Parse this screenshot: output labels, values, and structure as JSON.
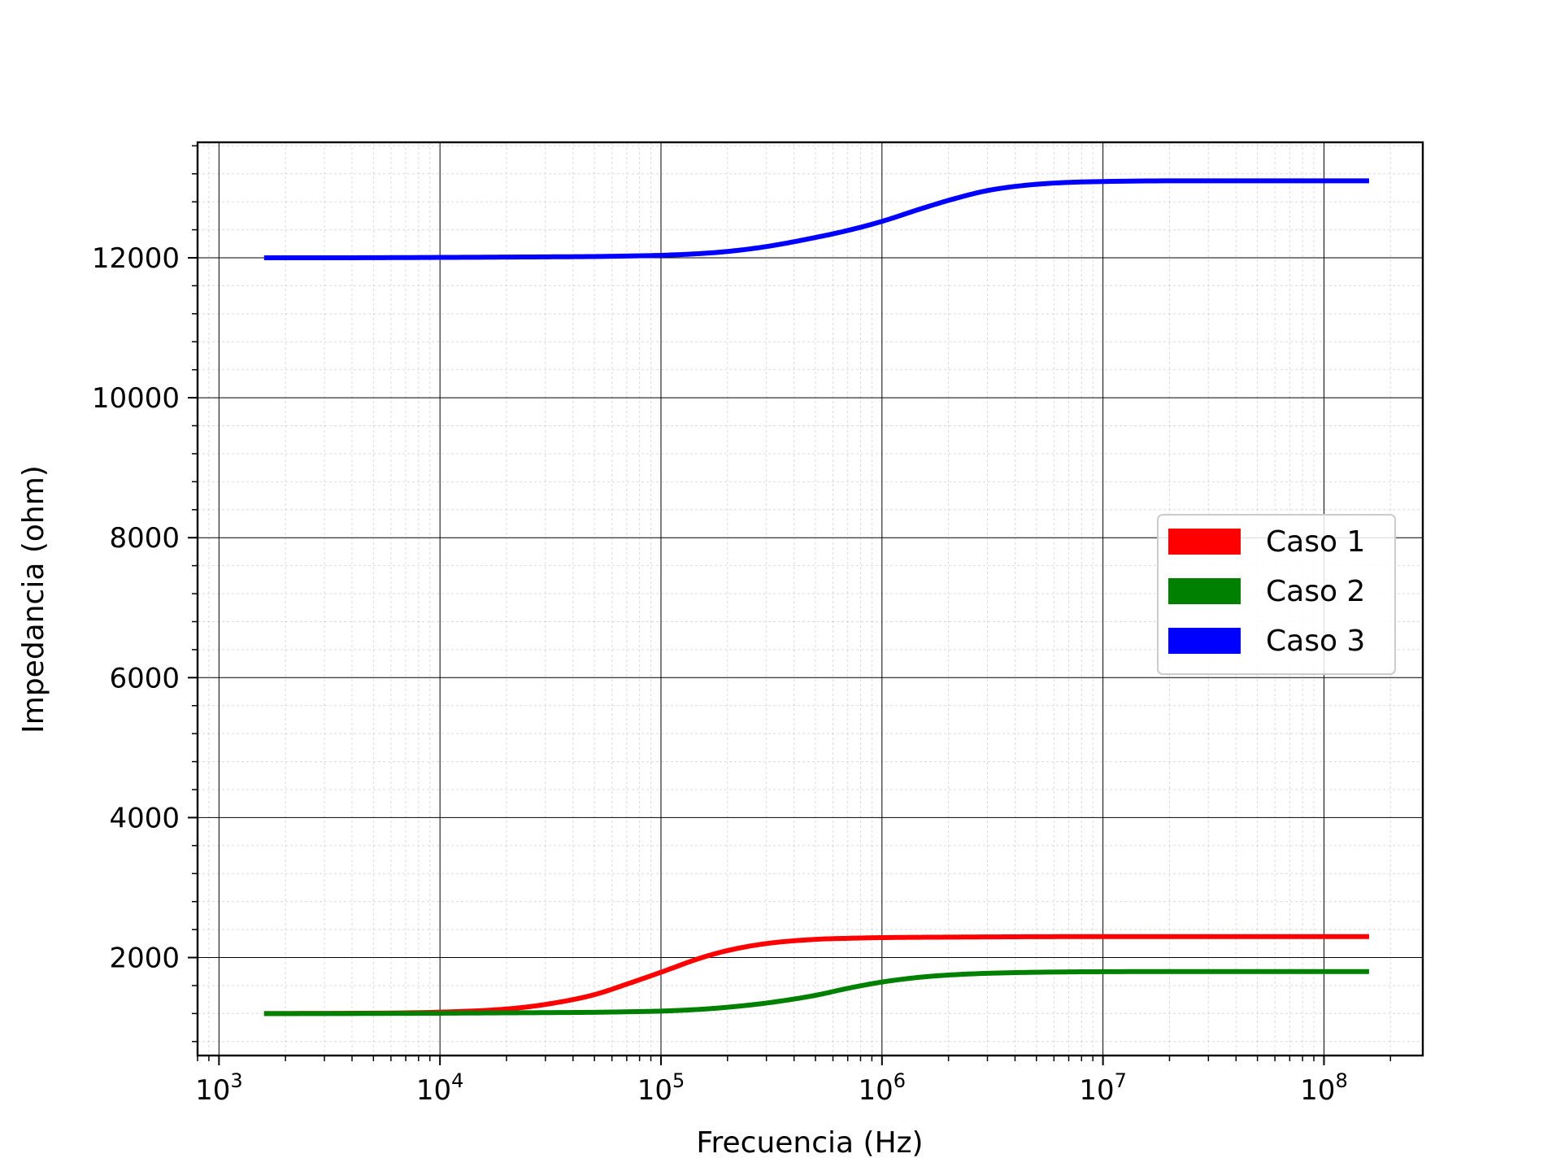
{
  "chart_data": {
    "type": "line",
    "xlabel": "Frecuencia (Hz)",
    "ylabel": "Impedancia (ohm)",
    "xscale": "log",
    "xlim": [
      800,
      280000000
    ],
    "ylim": [
      600,
      13650
    ],
    "x_ticks": [
      1000,
      10000,
      100000,
      1000000,
      10000000,
      100000000
    ],
    "x_tick_labels": [
      {
        "base": "10",
        "exp": "3"
      },
      {
        "base": "10",
        "exp": "4"
      },
      {
        "base": "10",
        "exp": "5"
      },
      {
        "base": "10",
        "exp": "6"
      },
      {
        "base": "10",
        "exp": "7"
      },
      {
        "base": "10",
        "exp": "8"
      }
    ],
    "y_ticks": [
      2000,
      4000,
      6000,
      8000,
      10000,
      12000
    ],
    "y_tick_labels": [
      "2000",
      "4000",
      "6000",
      "8000",
      "10000",
      "12000"
    ],
    "grid": {
      "major": true,
      "minor": true
    },
    "legend_position": "center-right",
    "x": [
      1600,
      3000,
      10000,
      20000,
      30000,
      50000,
      70000,
      100000,
      150000,
      200000,
      300000,
      500000,
      700000,
      1000000,
      1500000,
      2000000,
      3000000,
      5000000,
      10000000,
      30000000,
      160000000
    ],
    "series": [
      {
        "name": "Caso 1",
        "color": "#ff0000",
        "values": [
          1200,
          1202,
          1220,
          1265,
          1330,
          1470,
          1620,
          1790,
          1990,
          2100,
          2200,
          2260,
          2275,
          2285,
          2290,
          2292,
          2295,
          2298,
          2300,
          2300,
          2300
        ]
      },
      {
        "name": "Caso 2",
        "color": "#008000",
        "values": [
          1200,
          1200,
          1205,
          1210,
          1213,
          1218,
          1225,
          1235,
          1260,
          1290,
          1350,
          1460,
          1560,
          1650,
          1720,
          1750,
          1775,
          1790,
          1798,
          1800,
          1800
        ]
      },
      {
        "name": "Caso 3",
        "color": "#0000ff",
        "values": [
          12000,
          12000,
          12005,
          12010,
          12013,
          12018,
          12025,
          12035,
          12060,
          12090,
          12160,
          12290,
          12390,
          12520,
          12700,
          12820,
          12960,
          13050,
          13090,
          13100,
          13100
        ]
      }
    ]
  }
}
